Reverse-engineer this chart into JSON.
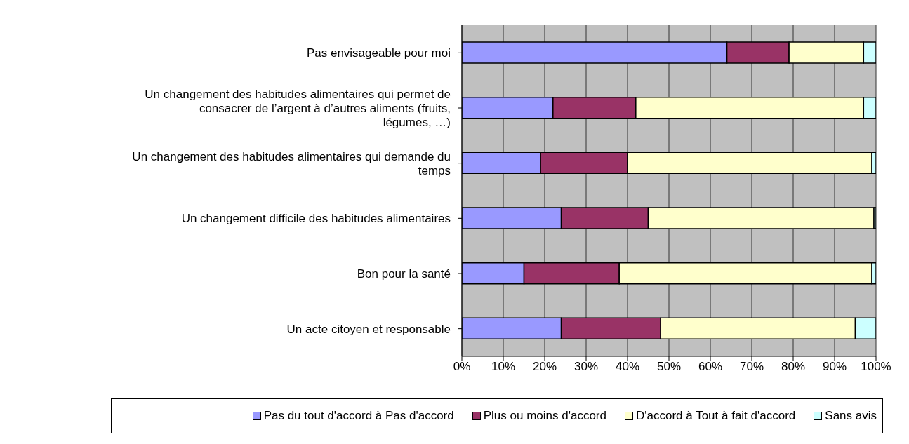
{
  "chart_data": {
    "type": "bar",
    "orientation": "horizontal",
    "stacked": true,
    "categories": [
      "Pas envisageable pour moi",
      "Un changement des habitudes alimentaires qui permet de consacrer de l’argent à d’autres aliments (fruits, légumes, …)",
      "Un changement des habitudes alimentaires qui demande du temps",
      "Un changement difficile des habitudes alimentaires",
      "Bon pour la santé",
      "Un acte citoyen et responsable"
    ],
    "series": [
      {
        "name": "Pas du tout d'accord à Pas d'accord",
        "color": "#9999ff",
        "values": [
          64,
          22,
          19,
          24,
          15,
          24
        ]
      },
      {
        "name": "Plus ou moins d'accord",
        "color": "#993366",
        "values": [
          15,
          20,
          21,
          21,
          23,
          24
        ]
      },
      {
        "name": "D'accord à Tout à fait d'accord",
        "color": "#ffffcc",
        "values": [
          18,
          55,
          59,
          54.5,
          61,
          47
        ]
      },
      {
        "name": "Sans avis",
        "color": "#ccffff",
        "values": [
          3,
          3,
          1,
          0.5,
          1,
          5
        ]
      }
    ],
    "xlim": [
      0,
      100
    ],
    "xticks": [
      {
        "value": 0,
        "label": "0%"
      },
      {
        "value": 10,
        "label": "10%"
      },
      {
        "value": 20,
        "label": "20%"
      },
      {
        "value": 30,
        "label": "30%"
      },
      {
        "value": 40,
        "label": "40%"
      },
      {
        "value": 50,
        "label": "50%"
      },
      {
        "value": 60,
        "label": "60%"
      },
      {
        "value": 70,
        "label": "70%"
      },
      {
        "value": 80,
        "label": "80%"
      },
      {
        "value": 90,
        "label": "90%"
      },
      {
        "value": 100,
        "label": "100%"
      }
    ],
    "grid": "x",
    "legend": "bottom"
  }
}
